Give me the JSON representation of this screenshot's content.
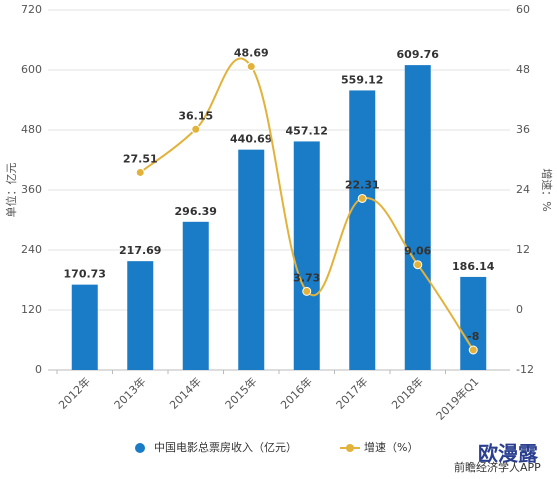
{
  "chart_data": {
    "type": "bar-line",
    "categories": [
      "2012年",
      "2013年",
      "2014年",
      "2015年",
      "2016年",
      "2017年",
      "2018年",
      "2019年Q1"
    ],
    "series": [
      {
        "name": "中国电影总票房收入（亿元）",
        "color": "#1a7bc6",
        "type": "bar",
        "values": [
          170.73,
          217.69,
          296.39,
          440.69,
          457.12,
          559.12,
          609.76,
          186.14
        ]
      },
      {
        "name": "增速（%）",
        "color": "#e2b23a",
        "type": "line",
        "axis": "y2",
        "values": [
          null,
          27.51,
          36.15,
          48.69,
          3.73,
          22.31,
          9.06,
          -8
        ]
      }
    ],
    "ylabel": "单位：亿元",
    "y2label": "增速：%",
    "ylim": [
      0,
      720
    ],
    "yticks": [
      0,
      120,
      240,
      360,
      480,
      600,
      720
    ],
    "y2lim": [
      -12,
      60
    ],
    "y2ticks": [
      -12,
      0,
      12,
      24,
      36,
      48,
      60
    ],
    "grid": true,
    "legend": "bottom",
    "source": "前瞻经济学人APP",
    "watermark": "欧漫露"
  }
}
